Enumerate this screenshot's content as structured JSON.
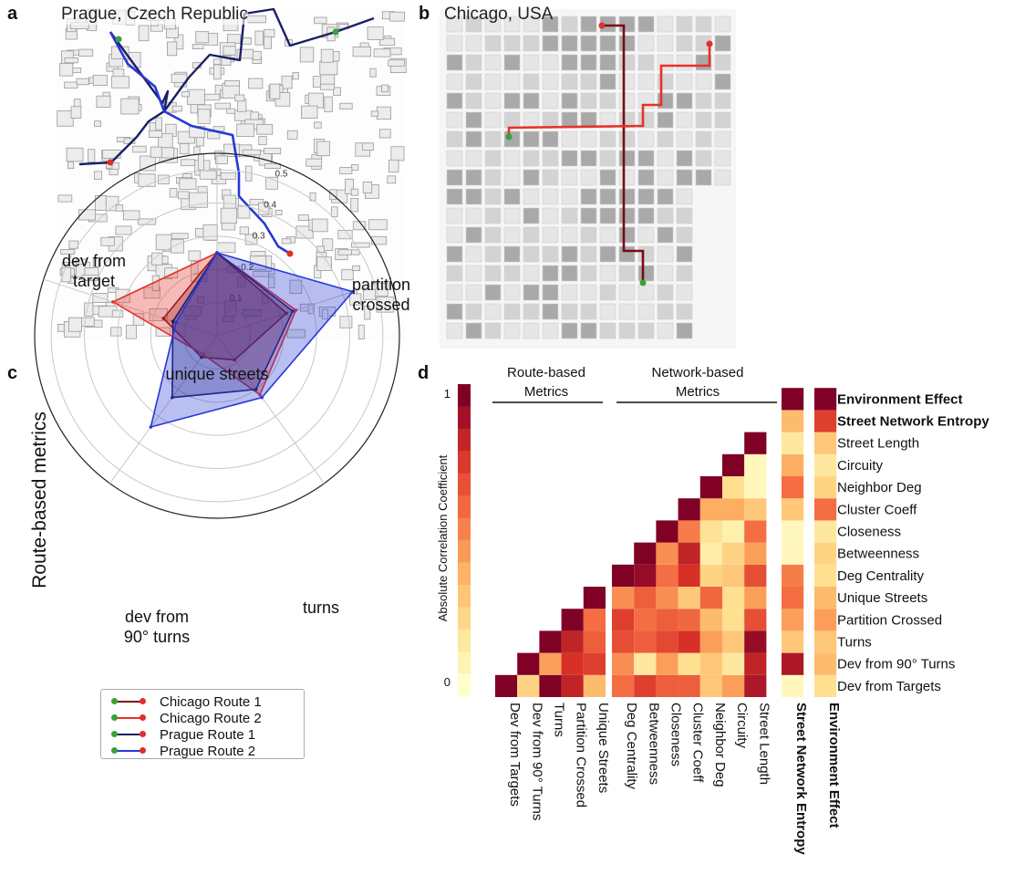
{
  "panels": {
    "a": {
      "letter": "a",
      "title": "Prague, Czech Republic"
    },
    "b": {
      "letter": "b",
      "title": "Chicago, USA"
    },
    "c": {
      "letter": "c"
    },
    "d": {
      "letter": "d"
    }
  },
  "colors": {
    "chicago_route_1": "#7a0a14",
    "chicago_route_2": "#e8312a",
    "prague_route_1": "#1a1f66",
    "prague_route_2": "#2738d8",
    "start_marker": "#3aa13a",
    "end_marker": "#e0302a"
  },
  "legend": [
    {
      "label": "Chicago Route 1",
      "color": "#7a0a14"
    },
    {
      "label": "Chicago Route 2",
      "color": "#e8312a"
    },
    {
      "label": "Prague Route 1",
      "color": "#1a1f66"
    },
    {
      "label": "Prague Route 2",
      "color": "#2738d8"
    }
  ],
  "chart_data": [
    {
      "type": "radar",
      "panel": "c",
      "ylabel": "Route-based metrics",
      "axes": [
        "unique streets",
        "partition crossed",
        "turns",
        "dev from 90° turns",
        "dev from target"
      ],
      "axis_labels": [
        "unique streets",
        "partition\ncrossed",
        "turns",
        "dev from\n90° turns",
        "dev from\ntarget"
      ],
      "radial_ticks": [
        0.1,
        0.2,
        0.3,
        0.4,
        0.5
      ],
      "rlim": [
        0,
        0.55
      ],
      "series": [
        {
          "name": "Chicago Route 1",
          "values": [
            0.25,
            0.22,
            0.09,
            0.08,
            0.17
          ],
          "color": "#7a0a14"
        },
        {
          "name": "Chicago Route 2",
          "values": [
            0.25,
            0.25,
            0.22,
            0.07,
            0.33
          ],
          "color": "#e8312a"
        },
        {
          "name": "Prague Route 1",
          "values": [
            0.25,
            0.24,
            0.2,
            0.23,
            0.14
          ],
          "color": "#1a1f66"
        },
        {
          "name": "Prague Route 2",
          "values": [
            0.25,
            0.43,
            0.23,
            0.34,
            0.13
          ],
          "color": "#2738d8"
        }
      ]
    },
    {
      "type": "heatmap",
      "panel": "d",
      "colorbar_label": "Absolute Correlation Coefficient",
      "colorbar_ticks": [
        "0",
        "1"
      ],
      "group_labels": [
        "Route-based\nMetrics",
        "Network-based\nMetrics"
      ],
      "variables": [
        "Dev from Targets",
        "Dev from 90° Turns",
        "Turns",
        "Partition Crossed",
        "Unique Streets",
        "Deg Centrality",
        "Betweenness",
        "Closeness",
        "Cluster Coeff",
        "Neighbor Deg",
        "Circuity",
        "Street Length"
      ],
      "row_labels": [
        "Environment Effect",
        "Street Network Entropy",
        "Street Length",
        "Circuity",
        "Neighbor Deg",
        "Cluster Coeff",
        "Closeness",
        "Betweenness",
        "Deg Centrality",
        "Unique Streets",
        "Partition Crossed",
        "Turns",
        "Dev from 90° Turns",
        "Dev from Targets"
      ],
      "bold_labels": [
        "Street Network Entropy",
        "Environment Effect"
      ],
      "matrix": [
        [
          1.0
        ],
        [
          0.25,
          1.0
        ],
        [
          1.0,
          0.45,
          1.0
        ],
        [
          0.85,
          0.8,
          0.85,
          1.0
        ],
        [
          0.35,
          0.75,
          0.65,
          0.6,
          1.0
        ],
        [
          0.6,
          0.5,
          0.7,
          0.75,
          0.5,
          1.0
        ],
        [
          0.75,
          0.15,
          0.65,
          0.6,
          0.65,
          0.95,
          1.0
        ],
        [
          0.65,
          0.45,
          0.72,
          0.65,
          0.5,
          0.6,
          0.5,
          1.0
        ],
        [
          0.65,
          0.2,
          0.8,
          0.62,
          0.3,
          0.8,
          0.85,
          0.55,
          1.0
        ],
        [
          0.3,
          0.3,
          0.45,
          0.35,
          0.62,
          0.25,
          0.12,
          0.18,
          0.4,
          1.0
        ],
        [
          0.45,
          0.15,
          0.3,
          0.2,
          0.2,
          0.3,
          0.25,
          0.1,
          0.4,
          0.2,
          1.0
        ],
        [
          0.9,
          0.85,
          0.95,
          0.7,
          0.45,
          0.7,
          0.45,
          0.6,
          0.3,
          0.05,
          0.05,
          1.0
        ]
      ],
      "entropy_column": [
        0.05,
        0.9,
        0.3,
        0.45,
        0.6,
        0.55,
        0.05,
        0.05,
        0.3,
        0.6,
        0.4,
        0.15,
        0.35,
        1.0
      ],
      "environment_column": [
        0.2,
        0.35,
        0.3,
        0.45,
        0.35,
        0.2,
        0.25,
        0.15,
        0.6,
        0.25,
        0.15,
        0.3,
        0.75,
        1.0
      ]
    }
  ]
}
